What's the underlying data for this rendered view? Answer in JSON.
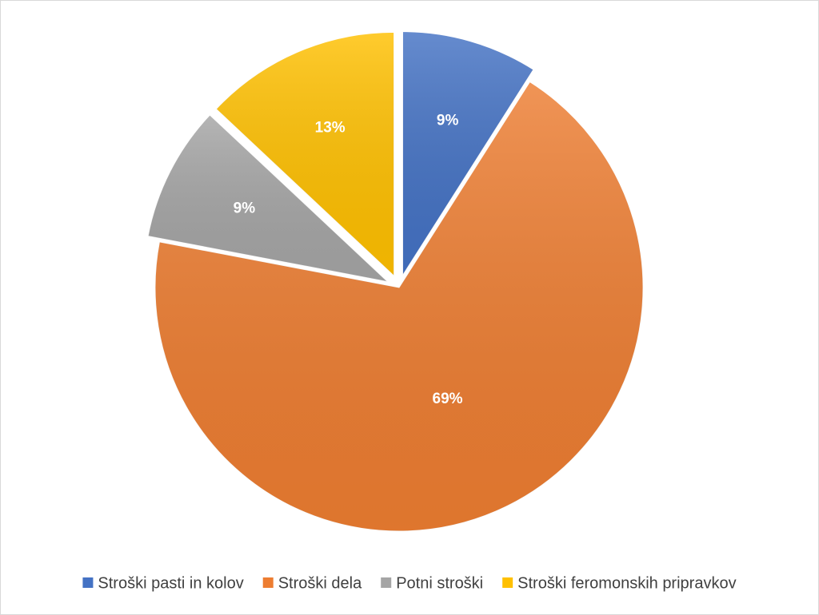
{
  "chart_data": {
    "type": "pie",
    "categories": [
      "Stroški pasti in kolov",
      "Stroški dela",
      "Potni stroški",
      "Stroški feromonskih pripravkov"
    ],
    "values": [
      9,
      69,
      9,
      13
    ],
    "value_labels": [
      "9%",
      "69%",
      "9%",
      "13%"
    ],
    "colors": [
      "#4472c4",
      "#ed7d31",
      "#a5a5a5",
      "#ffc000"
    ],
    "legend": "bottom"
  }
}
